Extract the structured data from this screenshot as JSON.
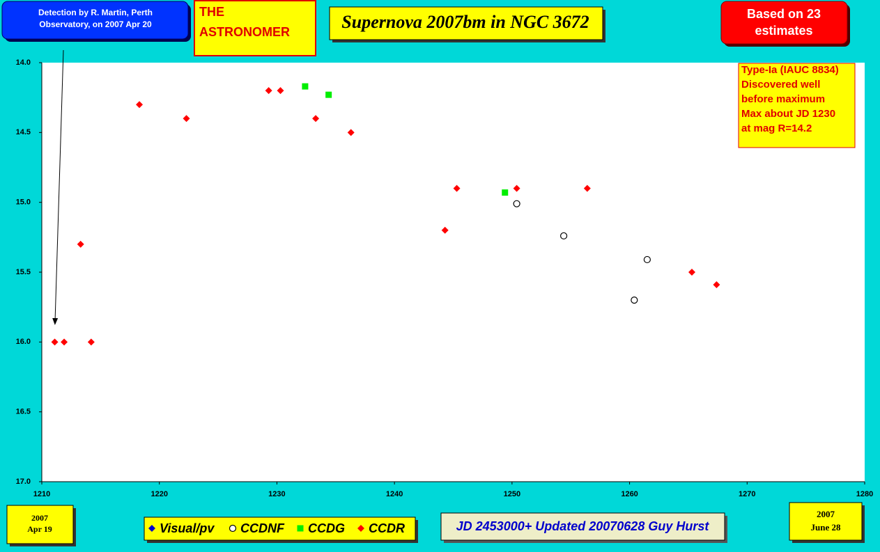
{
  "chart_data": {
    "type": "scatter",
    "title": "Supernova 2007bm in NGC 3672",
    "detection_note": [
      "Detection by  R. Martin, Perth",
      "Observatory, on 2007 Apr 20"
    ],
    "publisher": [
      "THE",
      "ASTRONOMER"
    ],
    "estimates_note": [
      "Based on 23",
      "estimates"
    ],
    "annotation": [
      "Type-Ia (IAUC 8834)",
      "Discovered well",
      "before maximum",
      "Max about JD 1230",
      "at mag R=14.2"
    ],
    "start_label": [
      "2007",
      "Apr 19"
    ],
    "end_label": [
      "2007",
      "June 28"
    ],
    "footer": "JD 2453000+ Updated 20070628 Guy Hurst",
    "xlim": [
      1210,
      1280
    ],
    "xticks": [
      1210,
      1220,
      1230,
      1240,
      1250,
      1260,
      1270,
      1280
    ],
    "ylim": [
      14,
      17
    ],
    "y_reversed": true,
    "yticks": [
      {
        "value": 14,
        "label": "14.0"
      },
      14.5,
      {
        "value": 15,
        "label": "15.0"
      },
      15.5,
      {
        "value": 16,
        "label": "16.0"
      },
      16.5,
      {
        "value": 17,
        "label": "17.0"
      }
    ],
    "series": [
      {
        "name": "Visual/pv",
        "color": "#0000cc",
        "marker": "diamond",
        "x": [],
        "values": []
      },
      {
        "name": "CCDNF",
        "color": "#ffffff",
        "marker": "circle",
        "x": [
          1250.4,
          1254.4,
          1261.5,
          1260.4
        ],
        "values": [
          15.01,
          15.24,
          15.41,
          15.7
        ]
      },
      {
        "name": "CCDG",
        "color": "#00ee00",
        "marker": "square",
        "x": [
          1232.4,
          1234.4,
          1249.4
        ],
        "values": [
          14.17,
          14.23,
          14.93
        ]
      },
      {
        "name": "CCDR",
        "color": "#ff0000",
        "marker": "diamond",
        "x": [
          1211.1,
          1211.9,
          1214.2,
          1213.3,
          1218.3,
          1222.3,
          1229.3,
          1230.3,
          1233.3,
          1236.3,
          1244.3,
          1245.3,
          1250.4,
          1256.4,
          1265.3,
          1267.4
        ],
        "values": [
          16.0,
          16.0,
          16.0,
          15.3,
          14.3,
          14.4,
          14.2,
          14.2,
          14.4,
          14.5,
          15.2,
          14.9,
          14.9,
          14.9,
          15.5,
          15.59
        ]
      }
    ]
  }
}
